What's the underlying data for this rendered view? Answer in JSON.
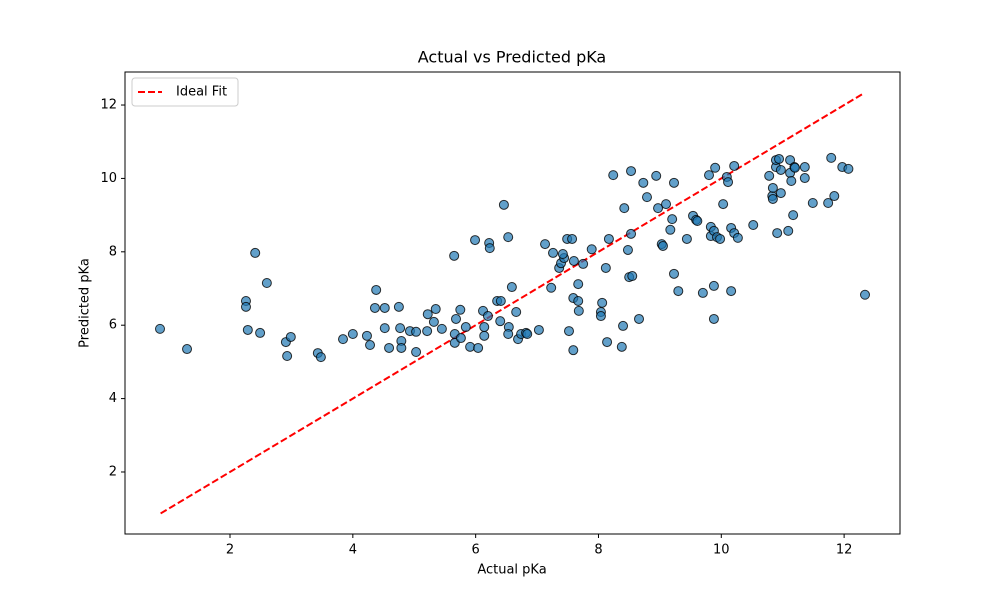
{
  "chart_data": {
    "type": "scatter",
    "title": "Actual vs Predicted pKa",
    "xlabel": "Actual pKa",
    "ylabel": "Predicted pKa",
    "xlim": [
      0.29,
      12.91
    ],
    "ylim": [
      0.31,
      12.9
    ],
    "xticks": [
      2,
      4,
      6,
      8,
      10,
      12
    ],
    "yticks": [
      2,
      4,
      6,
      8,
      10,
      12
    ],
    "grid": false,
    "legend": "upper left",
    "series": [
      {
        "name": "Ideal Fit",
        "type": "line",
        "color": "#ff0000",
        "x": [
          0.87,
          12.33
        ],
        "values": [
          0.87,
          12.33
        ]
      },
      {
        "type": "scatter",
        "color": "#1f77b4",
        "x": [
          0.86,
          1.3,
          2.26,
          2.26,
          2.41,
          2.29,
          2.49,
          2.6,
          2.91,
          2.99,
          2.93,
          3.43,
          3.48,
          3.84,
          4.0,
          4.23,
          4.28,
          4.38,
          4.36,
          4.52,
          4.52,
          4.59,
          4.75,
          4.77,
          4.79,
          4.79,
          4.93,
          5.03,
          5.03,
          5.21,
          5.22,
          5.32,
          5.35,
          5.45,
          5.65,
          5.66,
          5.68,
          5.66,
          5.76,
          5.75,
          5.84,
          5.91,
          5.99,
          6.04,
          6.14,
          6.14,
          6.12,
          6.22,
          6.23,
          6.2,
          6.35,
          6.4,
          6.41,
          6.46,
          6.53,
          6.54,
          6.53,
          6.59,
          6.66,
          6.69,
          6.74,
          6.82,
          6.84,
          7.03,
          7.13,
          7.23,
          7.26,
          7.36,
          7.39,
          7.44,
          7.42,
          7.49,
          7.52,
          7.57,
          7.6,
          7.59,
          7.59,
          7.67,
          7.67,
          7.68,
          7.75,
          7.89,
          8.04,
          8.04,
          8.06,
          8.12,
          8.14,
          8.17,
          8.24,
          8.4,
          8.38,
          8.42,
          8.48,
          8.5,
          8.53,
          8.53,
          8.55,
          8.66,
          8.73,
          8.79,
          8.94,
          8.97,
          9.03,
          9.05,
          9.1,
          9.2,
          9.17,
          9.23,
          9.23,
          9.3,
          9.44,
          9.54,
          9.59,
          9.61,
          9.7,
          9.8,
          9.83,
          9.83,
          9.88,
          9.88,
          9.88,
          9.9,
          9.93,
          9.98,
          10.03,
          10.09,
          10.11,
          10.16,
          10.16,
          10.21,
          10.21,
          10.27,
          10.52,
          10.78,
          10.83,
          10.84,
          10.84,
          10.89,
          10.91,
          10.89,
          10.94,
          10.97,
          10.97,
          11.09,
          11.12,
          11.12,
          11.14,
          11.17,
          11.19,
          11.2,
          11.36,
          11.36,
          11.49,
          11.74,
          11.79,
          11.84,
          11.97,
          12.07,
          12.34
        ],
        "values": [
          5.9,
          5.35,
          6.66,
          6.5,
          7.97,
          5.87,
          5.79,
          7.15,
          5.54,
          5.68,
          5.16,
          5.24,
          5.13,
          5.62,
          5.76,
          5.71,
          5.46,
          6.96,
          6.47,
          6.47,
          5.92,
          5.38,
          6.5,
          5.92,
          5.57,
          5.38,
          5.84,
          5.82,
          5.27,
          5.84,
          6.3,
          6.09,
          6.44,
          5.9,
          7.89,
          5.52,
          6.17,
          5.76,
          5.65,
          6.42,
          5.95,
          5.41,
          8.32,
          5.38,
          5.71,
          5.95,
          6.39,
          8.24,
          8.1,
          6.25,
          6.66,
          6.11,
          6.66,
          9.28,
          8.4,
          5.95,
          5.76,
          7.04,
          6.36,
          5.62,
          5.76,
          5.79,
          5.76,
          5.87,
          8.21,
          7.02,
          7.97,
          7.56,
          7.69,
          7.83,
          7.94,
          8.35,
          5.84,
          8.35,
          7.75,
          5.32,
          6.74,
          7.12,
          6.66,
          6.39,
          7.67,
          8.07,
          6.36,
          6.25,
          6.61,
          7.56,
          5.54,
          8.35,
          10.09,
          5.98,
          5.41,
          9.19,
          8.05,
          7.31,
          10.2,
          8.49,
          7.34,
          6.17,
          9.88,
          9.49,
          10.07,
          9.19,
          8.21,
          8.16,
          9.3,
          8.89,
          8.6,
          7.4,
          9.88,
          6.93,
          8.35,
          8.98,
          8.87,
          8.84,
          6.88,
          10.09,
          8.68,
          8.43,
          7.07,
          6.17,
          8.57,
          10.29,
          8.4,
          8.35,
          9.3,
          10.04,
          9.9,
          6.93,
          8.65,
          8.51,
          10.34,
          8.38,
          8.73,
          10.07,
          9.52,
          9.74,
          9.44,
          10.31,
          8.51,
          10.5,
          10.53,
          9.6,
          10.23,
          8.57,
          10.15,
          10.5,
          9.93,
          9.0,
          10.31,
          10.29,
          10.31,
          10.01,
          9.33,
          9.33,
          10.56,
          9.52,
          10.31,
          10.26,
          6.83
        ]
      }
    ]
  }
}
